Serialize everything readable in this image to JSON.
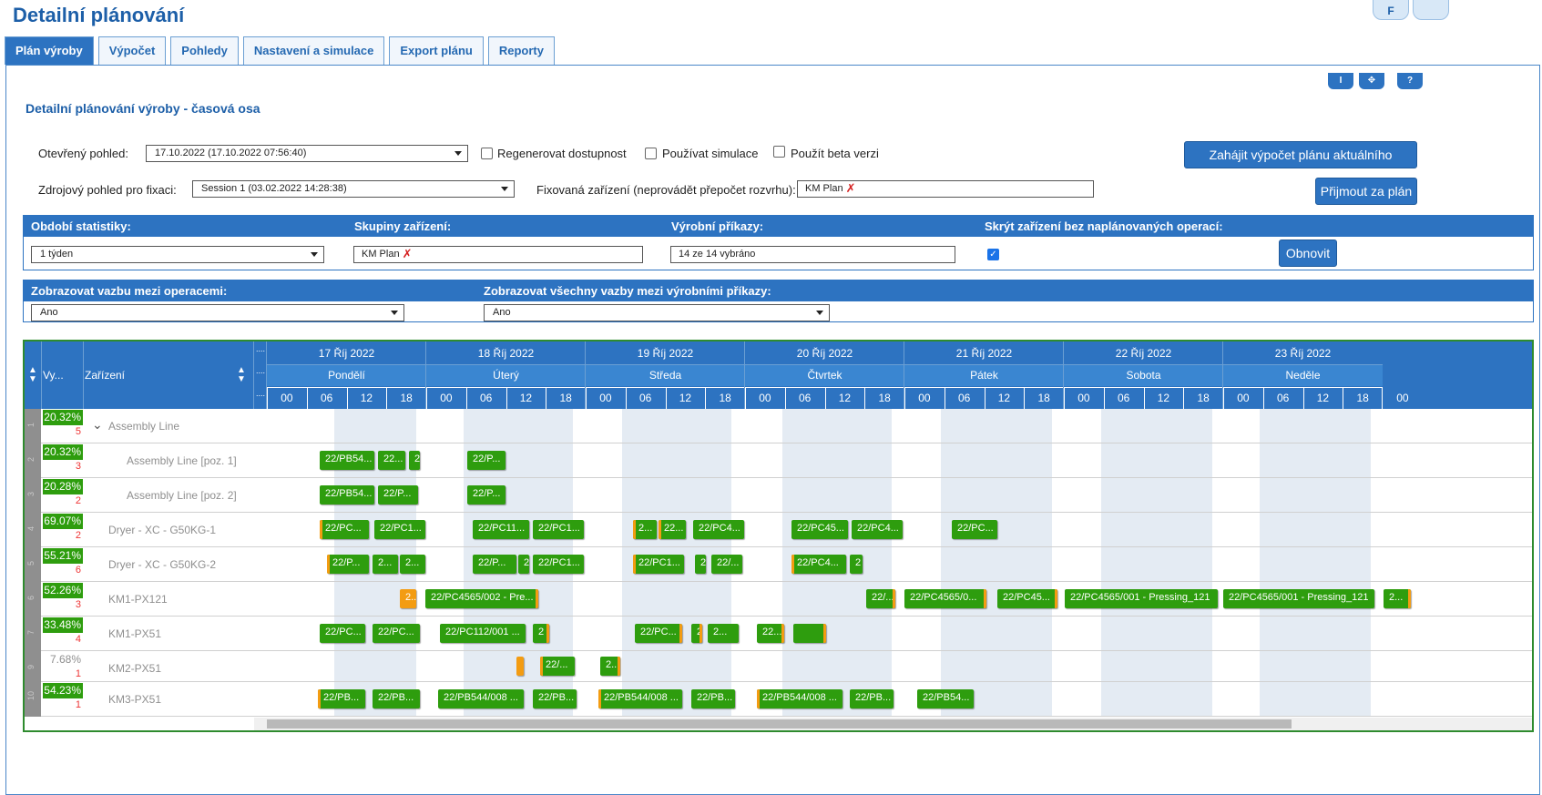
{
  "app_title": "Detailní plánování",
  "corner_buttons": [
    "F",
    ""
  ],
  "tabs": [
    "Plán výroby",
    "Výpočet",
    "Pohledy",
    "Nastavení a simulace",
    "Export plánu",
    "Reporty"
  ],
  "panel_buttons": [
    "I",
    "✥",
    "?"
  ],
  "section_title": "Detailní plánování výroby - časová osa",
  "form": {
    "open_view_label": "Otevřený pohled:",
    "open_view_value": "17.10.2022 (17.10.2022 07:56:40)",
    "regen_label": "Regenerovat dostupnost",
    "sim_label": "Používat simulace",
    "beta_label": "Použít beta verzi",
    "start_calc_button": "Zahájit výpočet plánu aktuálního pohledu",
    "source_view_label": "Zdrojový pohled pro fixaci:",
    "source_view_value": "Session 1 (03.02.2022 14:28:38)",
    "fixed_devices_label": "Fixovaná zařízení (neprovádět přepočet rozvrhu):",
    "fixed_devices_value": "KM Plan",
    "accept_button": "Přijmout za plán"
  },
  "filters": {
    "period_label": "Období statistiky:",
    "period_value": "1 týden",
    "groups_label": "Skupiny zařízení:",
    "groups_value": "KM Plan",
    "orders_label": "Výrobní příkazy:",
    "orders_value": "14 ze 14 vybráno",
    "hide_label": "Skrýt zařízení bez naplánovaných operací:",
    "hide_checked": true,
    "refresh_button": "Obnovit"
  },
  "links": {
    "ops_label": "Zobrazovat vazbu mezi operacemi:",
    "ops_value": "Ano",
    "orders_label": "Zobrazovat všechny vazby mezi výrobními příkazy:",
    "orders_value": "Ano"
  },
  "grid": {
    "col_util": "Vy...",
    "col_device": "Zařízení",
    "days": [
      {
        "date": "17 Říj 2022",
        "weekday": "Pondělí"
      },
      {
        "date": "18 Říj 2022",
        "weekday": "Úterý"
      },
      {
        "date": "19 Říj 2022",
        "weekday": "Středa"
      },
      {
        "date": "20 Říj 2022",
        "weekday": "Čtvrtek"
      },
      {
        "date": "21 Říj 2022",
        "weekday": "Pátek"
      },
      {
        "date": "22 Říj 2022",
        "weekday": "Sobota"
      },
      {
        "date": "23 Říj 2022",
        "weekday": "Neděle"
      }
    ],
    "hours": [
      "00",
      "06",
      "12",
      "18"
    ],
    "extra_hour": "00",
    "rows": [
      {
        "num": "1",
        "pct": "20.32%",
        "count": "5",
        "device": "Assembly Line",
        "level": 0,
        "expandable": true
      },
      {
        "num": "2",
        "pct": "20.32%",
        "count": "3",
        "device": "Assembly Line [poz. 1]",
        "level": 1
      },
      {
        "num": "3",
        "pct": "20.28%",
        "count": "2",
        "device": "Assembly Line [poz. 2]",
        "level": 1
      },
      {
        "num": "4",
        "pct": "69.07%",
        "count": "2",
        "device": "Dryer - XC - G50KG-1",
        "level": 0
      },
      {
        "num": "5",
        "pct": "55.21%",
        "count": "6",
        "device": "Dryer - XC - G50KG-2",
        "level": 0
      },
      {
        "num": "6",
        "pct": "52.26%",
        "count": "3",
        "device": "KM1-PX121",
        "level": 0
      },
      {
        "num": "7",
        "pct": "33.48%",
        "count": "4",
        "device": "KM1-PX51",
        "level": 0
      },
      {
        "num": "9",
        "pct": "7.68%",
        "count": "1",
        "device": "KM2-PX51",
        "level": 0,
        "low": true
      },
      {
        "num": "10",
        "pct": "54.23%",
        "count": "1",
        "device": "KM3-PX51",
        "level": 0
      }
    ],
    "bars": [
      [
        "22/PB54...",
        "22...",
        "2",
        "22/P..."
      ],
      [
        "22/PB54...",
        "22/P...",
        "22/P..."
      ],
      [
        "22/PC...",
        "22/PC1...",
        "22/PC11...",
        "22/PC1...",
        "2...",
        "22...",
        "22/PC4...",
        "22/PC45...",
        "22/PC4...",
        "22/PC..."
      ],
      [
        "22/P...",
        "2...",
        "2...",
        "22/P...",
        "2",
        "22/PC1...",
        "22/PC1...",
        "2",
        "22/...",
        "22/PC4...",
        "2"
      ],
      [
        "2...",
        "22/PC4565/002 - Pre...",
        "22/...",
        "22/PC4565/0...",
        "22/PC45...",
        "22/PC4565/001 - Pressing_121",
        "22/PC4565/001 - Pressing_121",
        "2..."
      ],
      [
        "22/PC...",
        "22/PC...",
        "22/PC112/001 ...",
        "2",
        "22/PC...",
        "22...",
        "2...",
        "22..."
      ],
      [
        "",
        "22/...",
        "2..."
      ],
      [
        "22/PB...",
        "22/PB...",
        "22/PB544/008 ...",
        "22/PB...",
        "22/PB544/008 ...",
        "22/PB...",
        "22/PB544/008 ...",
        "22/PB...",
        "22/PB54..."
      ]
    ]
  },
  "colors": {
    "accent": "#2d73c1",
    "bar_green": "#2e9d0e",
    "bar_orange": "#f39c12",
    "grid_border": "#2e8b2e"
  }
}
